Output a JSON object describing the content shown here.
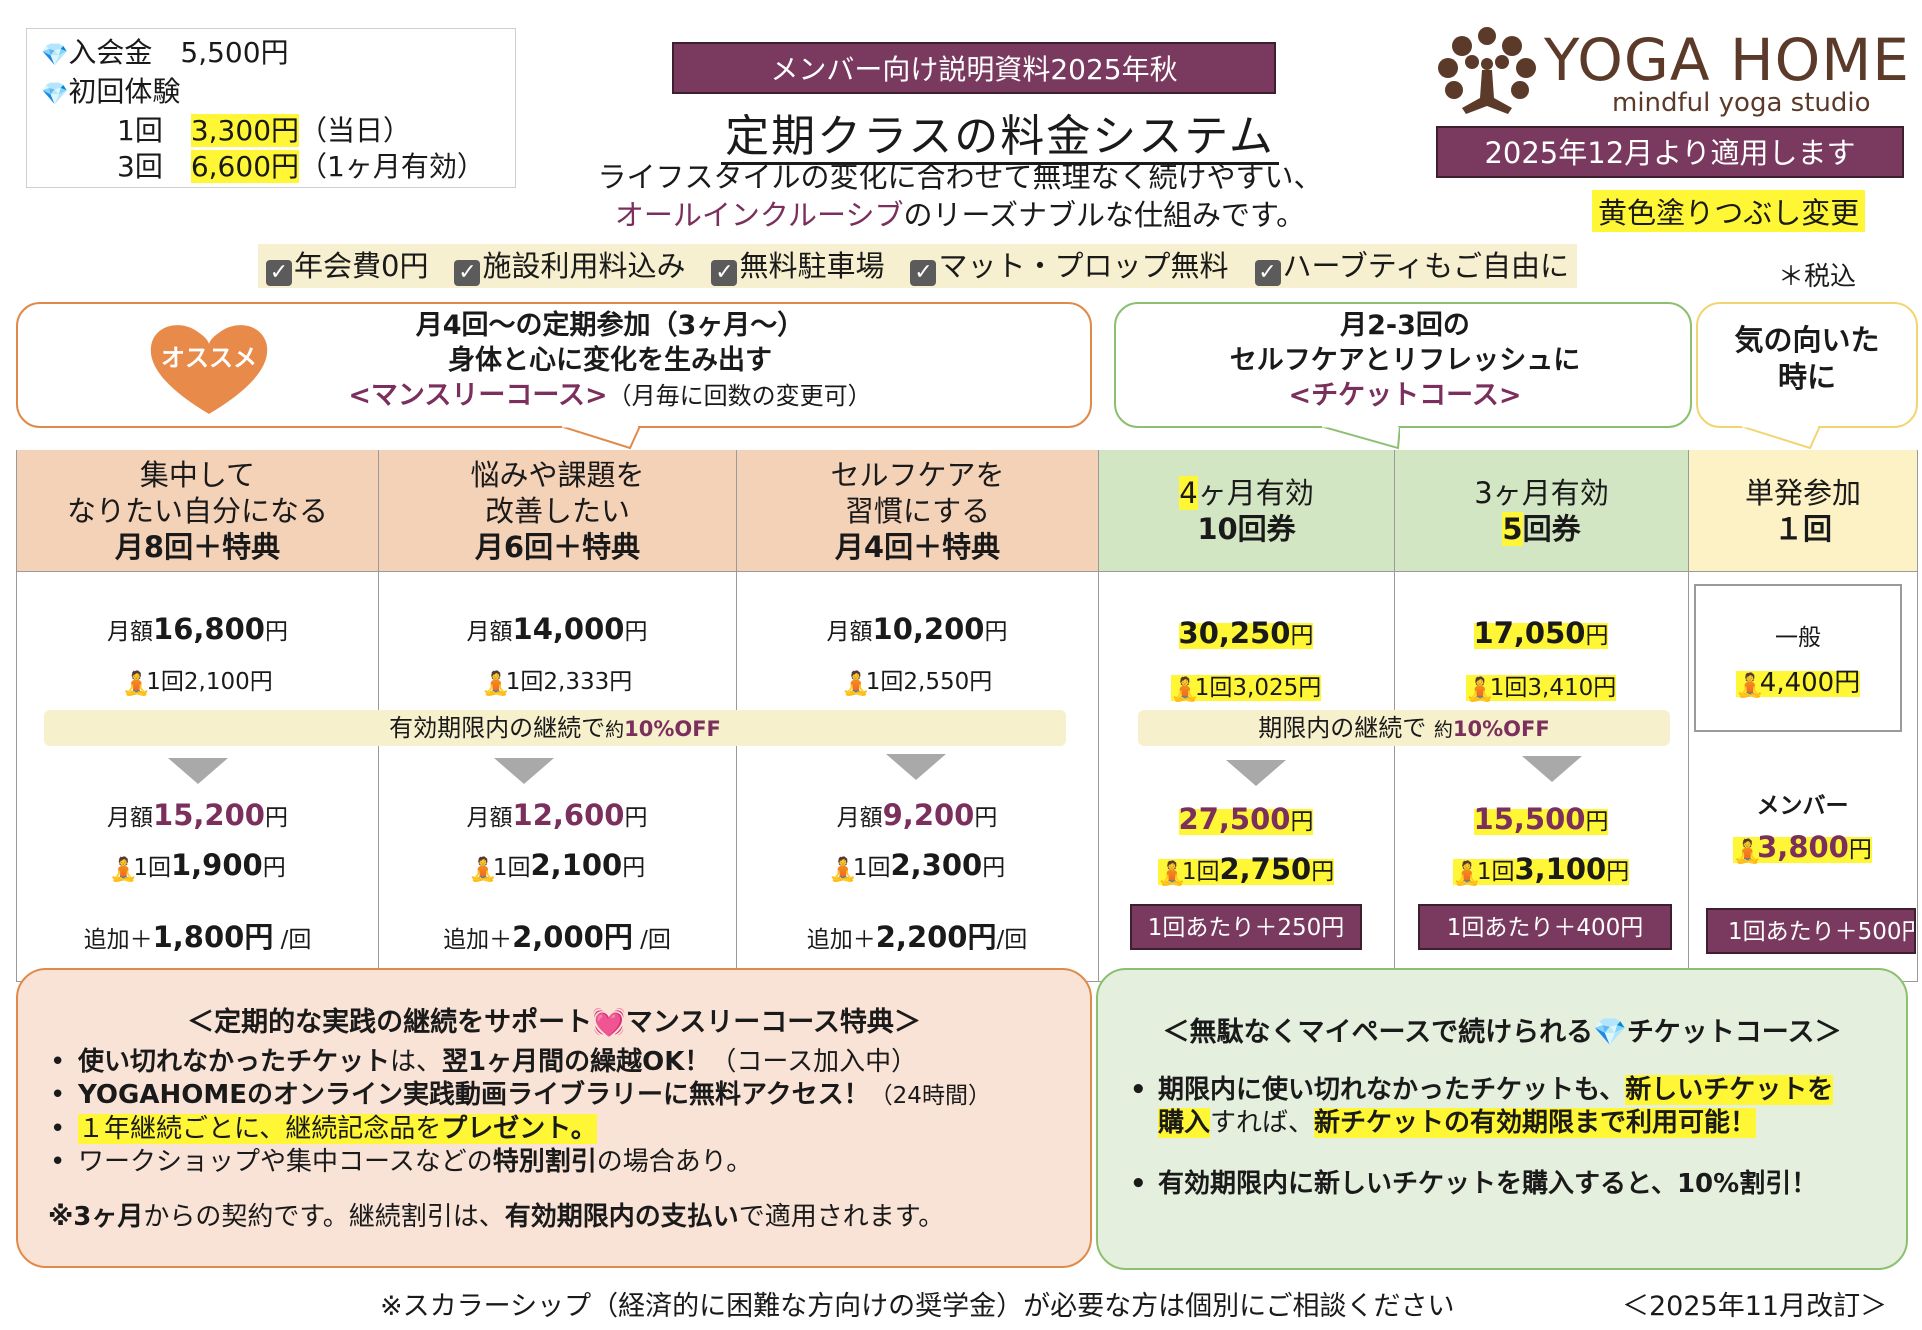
{
  "fees": {
    "entry": "入会金　5,500円",
    "trial": "初回体験",
    "trial1_label": "1回",
    "trial1_price": "3,300円",
    "trial1_note": "（当日）",
    "trial3_label": "3回",
    "trial3_price": "6,600円",
    "trial3_note": "（1ヶ月有効）"
  },
  "header": {
    "badge": "メンバー向け説明資料2025年秋",
    "title": "定期クラスの料金システム",
    "sub1": "ライフスタイルの変化に合わせて無理なく続けやすい、",
    "sub2_plum": "オールインクルーシブ",
    "sub2_rest": "のリーズナブルな仕組みです。"
  },
  "logo": {
    "name": "YOGA HOME",
    "tagline": "mindful yoga studio"
  },
  "apply_badge": "2025年12月より適用します",
  "yellow_note": "黄色塗りつぶし変更",
  "features": [
    "年会費0円",
    "施設利用料込み",
    "無料駐車場",
    "マット・プロップ無料",
    "ハーブティもご自由に"
  ],
  "tax": "＊税込",
  "bubbles": {
    "recommend": "オススメ",
    "monthly_l1": "月4回〜の定期参加（3ヶ月〜）",
    "monthly_l2": "身体と心に変化を生み出す",
    "monthly_l3_plum": "<マンスリーコース>",
    "monthly_l3_rest": "（月毎に回数の変更可）",
    "ticket_l1": "月2-3回の",
    "ticket_l2": "セルフケアとリフレッシュに",
    "ticket_l3": "<チケットコース>",
    "single_l1": "気の向いた",
    "single_l2": "時に"
  },
  "monthly": [
    {
      "h1": "集中して",
      "h2": "なりたい自分になる",
      "h3": "月8回＋特典",
      "pre": "月額",
      "price": "16,800",
      "yen": "円",
      "per": "1回2,100円",
      "after_price": "15,200",
      "after_per_pre": "1回",
      "after_per": "1,900",
      "add_pre": "追加＋",
      "add": "1,800円",
      "add_post": " /回"
    },
    {
      "h1": "悩みや課題を",
      "h2": "改善したい",
      "h3": "月6回＋特典",
      "pre": "月額",
      "price": "14,000",
      "yen": "円",
      "per": "1回2,333円",
      "after_price": "12,600",
      "after_per_pre": "1回",
      "after_per": "2,100",
      "add_pre": "追加＋",
      "add": "2,000円",
      "add_post": " /回"
    },
    {
      "h1": "セルフケアを",
      "h2": "習慣にする",
      "h3": "月4回＋特典",
      "pre": "月額",
      "price": "10,200",
      "yen": "円",
      "per": "1回2,550円",
      "after_price": "9,200",
      "after_per_pre": "1回",
      "after_per": "2,300",
      "add_pre": "追加＋",
      "add": "2,200円",
      "add_post": "/回"
    }
  ],
  "monthly_banner": {
    "text": "有効期限内の継続で",
    "small": "約",
    "off": "10%OFF"
  },
  "tickets": [
    {
      "h1_hl": "4",
      "h1_rest": "ヶ月有効",
      "h2": "10回券",
      "price": "30,250",
      "per": "1回3,025円",
      "after_price": "27,500",
      "after_per": "2,750",
      "per_label": "1回",
      "extra": "1回あたり＋250円"
    },
    {
      "h1_hl": "",
      "h1_rest": "3ヶ月有効",
      "h2_hl": "5",
      "h2": "回券",
      "price": "17,050",
      "per": "1回3,410円",
      "after_price": "15,500",
      "after_per": "3,100",
      "per_label": "1回",
      "extra": "1回あたり＋400円"
    }
  ],
  "ticket_banner": {
    "text": "期限内の継続で ",
    "small": "約",
    "off": "10%OFF"
  },
  "single": {
    "h1": "単発参加",
    "h2": "１回",
    "general": "一般",
    "general_price": "4,400円",
    "member": "メンバー",
    "member_price": "3,800",
    "yen": "円",
    "extra": "1回あたり＋500円"
  },
  "benefits_monthly": {
    "title": "＜定期的な実践の継続をサポート",
    "title2": "マンスリーコース特典＞",
    "i1_b": "使い切れなかったチケット",
    "i1_m": "は、",
    "i1_b2": "翌1ヶ月間の繰越OK！",
    "i1_r": "（コース加入中）",
    "i2_b": "YOGAHOMEのオンライン実践動画ライブラリーに無料アクセス！",
    "i2_r": "（24時間）",
    "i3_a": "１年継続ごとに、継続記念品を",
    "i3_b": "プレゼント。",
    "i4_a": "ワークショップや集中コースなどの",
    "i4_b": "特別割引",
    "i4_c": "の場合あり。",
    "note_a": "※",
    "note_b": "3ヶ月",
    "note_c": "からの契約です。継続割引は、",
    "note_d": "有効期限内の支払い",
    "note_e": "で適用されます。"
  },
  "benefits_ticket": {
    "title": "＜無駄なくマイペースで続けられる",
    "title2": "チケットコース＞",
    "i1_a": "期限内に使い切れなかったチケットも、",
    "i1_hl": "新しいチケットを",
    "i1_hl2": "購入",
    "i1_m": "すれば、",
    "i1_b": "新チケットの有効期限まで利用可能！",
    "i2": "有効期限内に新しいチケットを購入すると、10%割引！"
  },
  "footer": {
    "note": "※スカラーシップ（経済的に困難な方向けの奨学金）が必要な方は個別にご相談ください",
    "revised": "＜2025年11月改訂＞"
  }
}
